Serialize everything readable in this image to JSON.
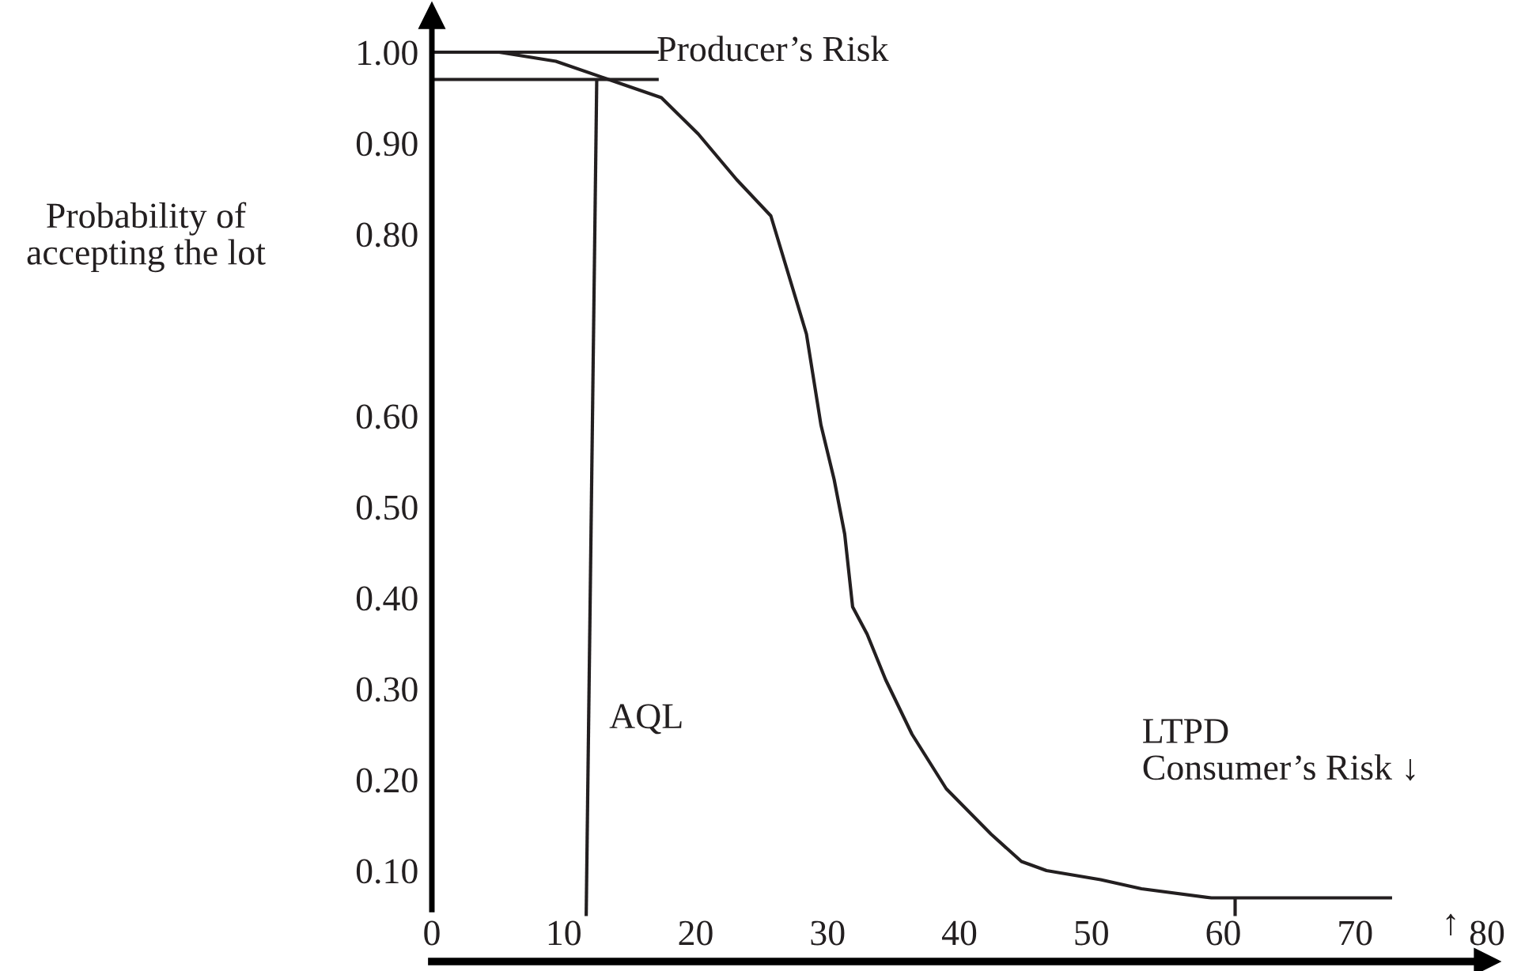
{
  "chart_data": {
    "type": "line",
    "ylabel": "Probability of\naccepting the lot",
    "xlim": [
      0,
      80
    ],
    "ylim": [
      0,
      1.04
    ],
    "xticks": [
      0,
      10,
      20,
      30,
      40,
      50,
      60,
      70,
      80
    ],
    "yticks": [
      {
        "value": 0.1,
        "label": "0.10"
      },
      {
        "value": 0.2,
        "label": "0.20"
      },
      {
        "value": 0.3,
        "label": "0.30"
      },
      {
        "value": 0.4,
        "label": "0.40"
      },
      {
        "value": 0.5,
        "label": "0.50"
      },
      {
        "value": 0.6,
        "label": "0.60"
      },
      {
        "value": 0.8,
        "label": "0.80"
      },
      {
        "value": 0.9,
        "label": "0.90"
      },
      {
        "value": 1.0,
        "label": "1.00"
      }
    ],
    "series": [
      {
        "color": "#231f20",
        "x": [
          5.1,
          9.4,
          13.4,
          17.4,
          20.2,
          23.1,
          25.7,
          28.4,
          29.5,
          30.5,
          31.3,
          31.9,
          33.0,
          34.4,
          36.4,
          39.0,
          42.4,
          44.7,
          46.6,
          50.7,
          53.8,
          59.1,
          64.8,
          68.5,
          72.8
        ],
        "values": [
          1.0,
          0.99,
          0.97,
          0.95,
          0.91,
          0.86,
          0.82,
          0.69,
          0.59,
          0.53,
          0.47,
          0.39,
          0.36,
          0.31,
          0.25,
          0.19,
          0.14,
          0.11,
          0.1,
          0.09,
          0.08,
          0.07,
          0.07,
          0.07,
          0.07
        ]
      },
      {
        "color": "#231f20",
        "x": [
          0,
          17.2
        ],
        "values": [
          1.0,
          1.0
        ]
      },
      {
        "color": "#231f20",
        "x": [
          0,
          17.2
        ],
        "values": [
          0.97,
          0.97
        ]
      },
      {
        "color": "#231f20",
        "x": [
          11.7,
          12.5
        ],
        "values": [
          0.05,
          0.97
        ]
      },
      {
        "color": "#231f20",
        "x": [
          60.9,
          60.9
        ],
        "values": [
          0.05,
          0.07
        ]
      }
    ],
    "annotations": [
      "Producer’s Risk",
      "AQL",
      "LTPD\nConsumer’s Risk ↓",
      "↑"
    ]
  }
}
